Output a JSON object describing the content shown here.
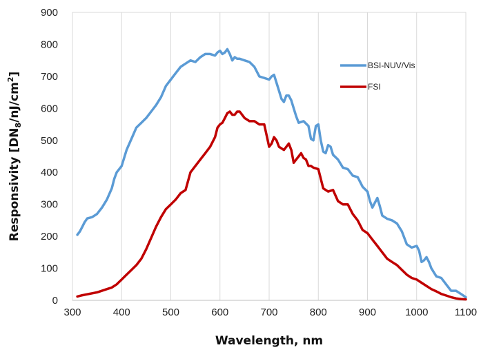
{
  "chart_data": {
    "type": "line",
    "xlabel": "Wavelength, nm",
    "ylabel_main": "Responsivity [DN",
    "ylabel_sub": "8",
    "ylabel_rest": "/nJ/cm",
    "ylabel_sup": "2",
    "ylabel_close": "]",
    "xlim": [
      300,
      1100
    ],
    "ylim": [
      0,
      900
    ],
    "xticks": [
      "300",
      "400",
      "500",
      "600",
      "700",
      "800",
      "900",
      "1000",
      "1100"
    ],
    "yticks": [
      "0",
      "100",
      "200",
      "300",
      "400",
      "500",
      "600",
      "700",
      "800",
      "900"
    ],
    "grid": "vertical",
    "legend_position": "right",
    "series": [
      {
        "name": "BSI-NUV/Vis",
        "color": "#5b9bd5",
        "x": [
          310,
          315,
          320,
          325,
          330,
          340,
          350,
          360,
          370,
          380,
          385,
          390,
          400,
          410,
          420,
          430,
          440,
          450,
          460,
          470,
          480,
          490,
          495,
          500,
          510,
          520,
          530,
          540,
          550,
          560,
          570,
          580,
          590,
          595,
          600,
          605,
          610,
          615,
          620,
          625,
          630,
          635,
          640,
          650,
          660,
          670,
          680,
          690,
          700,
          705,
          710,
          715,
          720,
          725,
          730,
          735,
          740,
          745,
          750,
          755,
          760,
          770,
          780,
          785,
          790,
          795,
          800,
          805,
          810,
          815,
          820,
          825,
          830,
          840,
          850,
          860,
          870,
          880,
          890,
          900,
          905,
          910,
          915,
          920,
          925,
          930,
          940,
          950,
          960,
          970,
          980,
          990,
          1000,
          1005,
          1010,
          1015,
          1020,
          1025,
          1030,
          1040,
          1050,
          1060,
          1070,
          1080,
          1090,
          1100
        ],
        "values": [
          205,
          215,
          230,
          245,
          256,
          260,
          270,
          290,
          315,
          350,
          380,
          400,
          420,
          470,
          505,
          540,
          555,
          570,
          590,
          610,
          635,
          670,
          680,
          690,
          710,
          730,
          740,
          750,
          745,
          760,
          770,
          770,
          765,
          775,
          780,
          770,
          775,
          785,
          770,
          750,
          760,
          755,
          755,
          750,
          745,
          730,
          700,
          695,
          690,
          700,
          705,
          680,
          655,
          630,
          620,
          640,
          640,
          625,
          600,
          575,
          555,
          560,
          545,
          505,
          500,
          545,
          550,
          500,
          465,
          460,
          485,
          480,
          455,
          440,
          415,
          410,
          390,
          385,
          355,
          340,
          310,
          290,
          305,
          320,
          295,
          265,
          255,
          250,
          240,
          215,
          175,
          165,
          170,
          155,
          120,
          125,
          135,
          120,
          100,
          75,
          70,
          50,
          30,
          30,
          20,
          10
        ]
      },
      {
        "name": "FSI",
        "color": "#c00000",
        "x": [
          310,
          320,
          330,
          340,
          350,
          360,
          370,
          380,
          390,
          400,
          410,
          420,
          430,
          440,
          450,
          460,
          470,
          480,
          490,
          500,
          510,
          515,
          520,
          525,
          530,
          540,
          550,
          560,
          570,
          580,
          590,
          595,
          600,
          605,
          610,
          615,
          620,
          625,
          630,
          635,
          640,
          645,
          650,
          660,
          670,
          680,
          685,
          690,
          700,
          705,
          710,
          715,
          720,
          730,
          740,
          745,
          750,
          755,
          760,
          765,
          770,
          775,
          780,
          785,
          790,
          800,
          810,
          820,
          830,
          840,
          850,
          860,
          870,
          880,
          890,
          900,
          910,
          920,
          930,
          940,
          950,
          960,
          970,
          980,
          990,
          1000,
          1010,
          1020,
          1030,
          1040,
          1050,
          1060,
          1070,
          1080,
          1090,
          1100
        ],
        "values": [
          12,
          16,
          19,
          22,
          25,
          30,
          35,
          40,
          50,
          65,
          80,
          95,
          110,
          130,
          160,
          195,
          230,
          260,
          285,
          300,
          315,
          325,
          335,
          340,
          345,
          400,
          420,
          440,
          460,
          480,
          510,
          540,
          550,
          555,
          570,
          585,
          590,
          580,
          580,
          590,
          590,
          580,
          570,
          560,
          560,
          550,
          550,
          550,
          480,
          490,
          510,
          500,
          480,
          470,
          490,
          470,
          430,
          440,
          450,
          460,
          445,
          440,
          420,
          420,
          415,
          410,
          350,
          340,
          345,
          310,
          300,
          300,
          270,
          250,
          220,
          210,
          190,
          170,
          150,
          130,
          120,
          110,
          95,
          80,
          70,
          65,
          55,
          45,
          35,
          28,
          20,
          15,
          10,
          6,
          4,
          3
        ]
      }
    ]
  }
}
